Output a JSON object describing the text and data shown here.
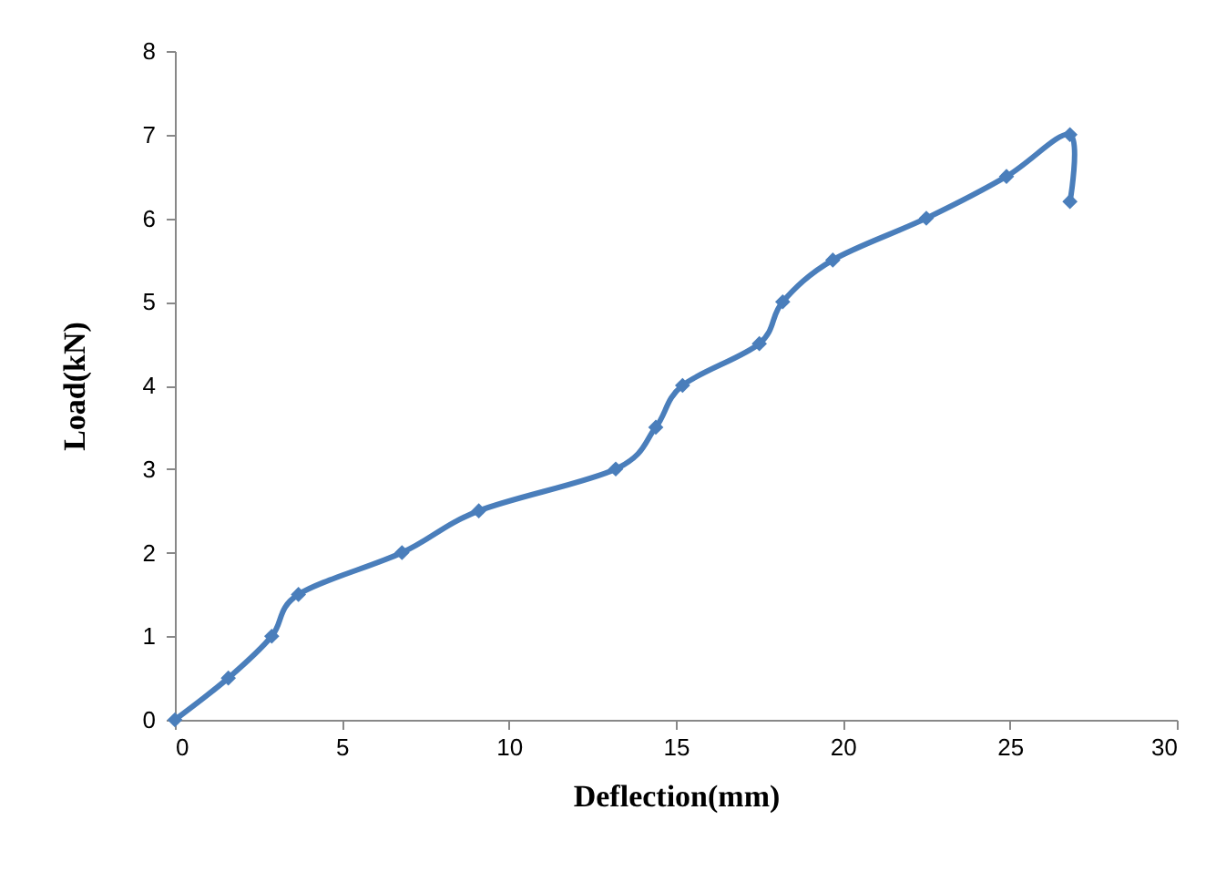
{
  "chart_data": {
    "type": "line",
    "xlabel": "Deflection(mm)",
    "ylabel": "Load(kN)",
    "xlim": [
      0,
      30
    ],
    "xticks": [
      0,
      5,
      10,
      15,
      20,
      25,
      30
    ],
    "ylim": [
      0,
      8
    ],
    "yticks": [
      0,
      1,
      2,
      3,
      4,
      5,
      6,
      7,
      8
    ],
    "grid": false,
    "legend": false,
    "marker": "diamond",
    "line_style": "solid",
    "series": [
      {
        "color": "#4a7ebb",
        "x": [
          0,
          1.6,
          2.9,
          3.7,
          6.8,
          9.1,
          13.2,
          14.4,
          15.2,
          17.5,
          18.2,
          19.7,
          22.5,
          24.9,
          26.8,
          26.8
        ],
        "values": [
          0,
          0.5,
          1.0,
          1.5,
          2.0,
          2.5,
          3.0,
          3.5,
          4.0,
          4.5,
          5.0,
          5.5,
          6.0,
          6.5,
          7.0,
          6.2
        ]
      }
    ]
  }
}
